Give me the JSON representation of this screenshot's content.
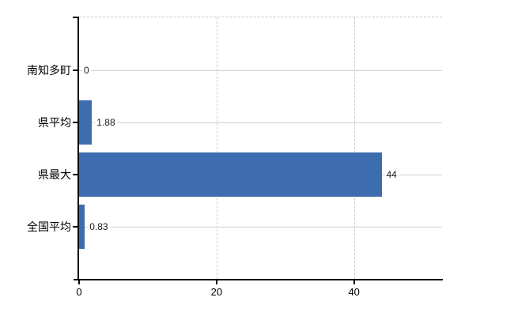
{
  "chart_data": {
    "type": "bar",
    "orientation": "horizontal",
    "title": "",
    "categories": [
      "南知多町",
      "県平均",
      "県最大",
      "全国平均"
    ],
    "values": [
      0,
      1.88,
      44,
      0.83
    ],
    "value_labels": [
      "0",
      "1.88",
      "44",
      "0.83"
    ],
    "series": [
      {
        "name": "value",
        "values": [
          0,
          1.88,
          44,
          0.83
        ]
      }
    ],
    "xticks": [
      0,
      20,
      40
    ],
    "xtick_labels": [
      "0",
      "20",
      "40"
    ],
    "xlim": [
      0,
      52.8
    ],
    "grid": true,
    "legend": false,
    "gridline_style": {
      "row_lines": "solid",
      "tick_lines": "dashed",
      "top_border": "dashed"
    },
    "colors": {
      "bar": "#3d6dae",
      "axis": "#000000",
      "gridline": "#d0d0d0",
      "dashed_line": "#cccccc",
      "text": "#000000",
      "background": "#ffffff"
    }
  }
}
